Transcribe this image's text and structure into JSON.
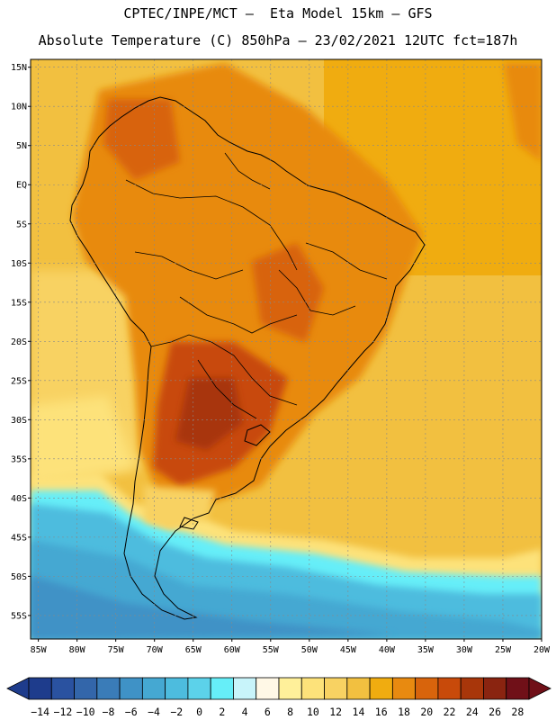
{
  "header": {
    "line1": "CPTEC/INPE/MCT –  Eta Model 15km – GFS",
    "line2": "Absolute Temperature (C) 850hPa – 23/02/2021 12UTC fct=187h"
  },
  "map": {
    "lon_range": [
      -86,
      -20
    ],
    "lat_range": [
      -58,
      16
    ],
    "lat_labels": [
      "15N",
      "10N",
      "5N",
      "EQ",
      "5S",
      "10S",
      "15S",
      "20S",
      "25S",
      "30S",
      "35S",
      "40S",
      "45S",
      "50S",
      "55S"
    ],
    "lat_values": [
      15,
      10,
      5,
      0,
      -5,
      -10,
      -15,
      -20,
      -25,
      -30,
      -35,
      -40,
      -45,
      -50,
      -55
    ],
    "lon_labels": [
      "85W",
      "80W",
      "75W",
      "70W",
      "65W",
      "60W",
      "55W",
      "50W",
      "45W",
      "40W",
      "35W",
      "30W",
      "25W",
      "20W"
    ],
    "lon_values": [
      -85,
      -80,
      -75,
      -70,
      -65,
      -60,
      -55,
      -50,
      -45,
      -40,
      -35,
      -30,
      -25,
      -20
    ],
    "grid": true
  },
  "colorbar": {
    "labels": [
      "-14",
      "-12",
      "-10",
      "-8",
      "-6",
      "-4",
      "-2",
      "0",
      "2",
      "4",
      "6",
      "8",
      "10",
      "12",
      "14",
      "16",
      "18",
      "20",
      "22",
      "24",
      "26",
      "28"
    ],
    "colors": [
      "#1e3c8c",
      "#2a52a0",
      "#3366aa",
      "#3a7cb8",
      "#3f92c6",
      "#45a8d2",
      "#4dbcde",
      "#5cd2ea",
      "#66eef8",
      "#c8f4fa",
      "#fff8e6",
      "#fff09a",
      "#fde27a",
      "#f8d262",
      "#f2c040",
      "#f0ac10",
      "#e88a10",
      "#d8640c",
      "#c84a0a",
      "#a8360a",
      "#8a2410",
      "#701018"
    ]
  }
}
